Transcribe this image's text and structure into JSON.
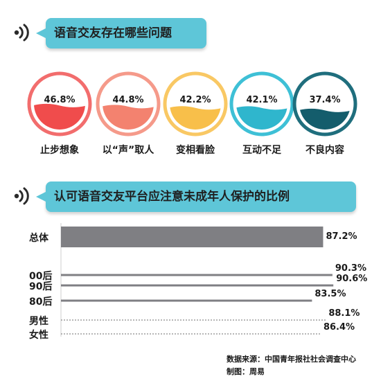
{
  "header1": {
    "title": "语音交友存在哪些问题",
    "icon": "speaker-icon"
  },
  "header2": {
    "title": "认可语音交友平台应注意未成年人保护的比例",
    "icon": "speaker-icon"
  },
  "chart_data": [
    {
      "type": "gauge",
      "categories": [
        "止步想象",
        "以“声”取人",
        "变相看脸",
        "互动不足",
        "不良内容"
      ],
      "values": [
        46.8,
        44.8,
        42.2,
        42.1,
        37.4
      ],
      "value_labels": [
        "46.8%",
        "44.8%",
        "42.2%",
        "42.1%",
        "37.4%"
      ],
      "colors": [
        {
          "ring": "#f26d6d",
          "fill": "#f04c4c"
        },
        {
          "ring": "#f59a8a",
          "fill": "#f3826f"
        },
        {
          "ring": "#f9c864",
          "fill": "#f8bf4a"
        },
        {
          "ring": "#3ec0d6",
          "fill": "#2fb6cd"
        },
        {
          "ring": "#1f6e7d",
          "fill": "#145d6c"
        }
      ]
    },
    {
      "type": "bar",
      "categories": [
        "总体",
        "00后",
        "90后",
        "80后",
        "男性",
        "女性"
      ],
      "values": [
        87.2,
        90.3,
        90.6,
        83.5,
        88.1,
        86.4
      ],
      "value_labels": [
        "87.2%",
        "90.3%",
        "90.6%",
        "83.5%",
        "88.1%",
        "86.4%"
      ],
      "bar_colors": [
        "#7f7f83",
        "#7f7f83",
        "#7f7f83",
        "#7f7f83",
        "#7f7f83",
        "#7f7f83"
      ]
    }
  ],
  "footer": {
    "source": "数据来源：中国青年报社社会调查中心",
    "credit": "制图：周易"
  }
}
